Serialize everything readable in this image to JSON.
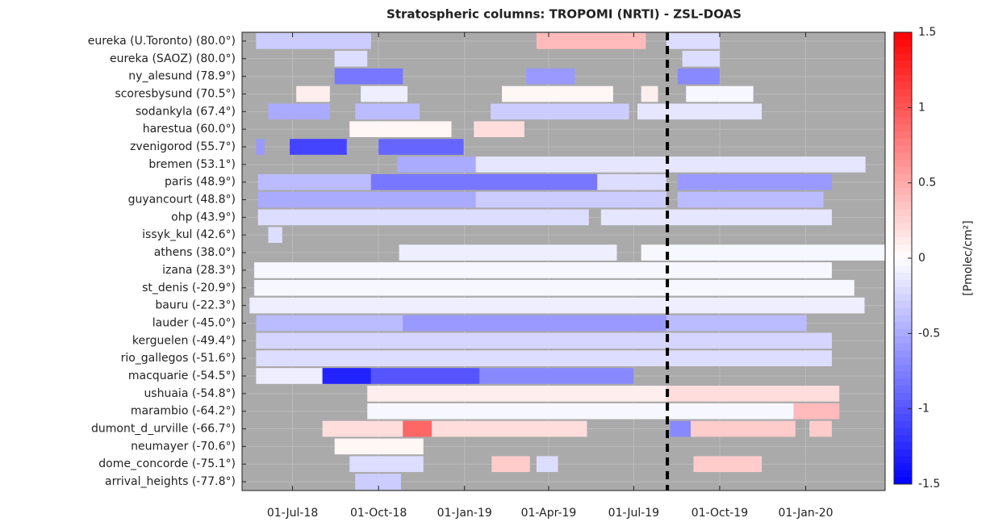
{
  "chart_data": {
    "type": "timeline-heatmap",
    "title": "Stratospheric columns: TROPOMI (NRTI) - ZSL-DOAS",
    "xlim": [
      "2018-05-08",
      "2020-03-26"
    ],
    "xticks": [
      {
        "value": "2018-07-01",
        "label": "01-Jul-18"
      },
      {
        "value": "2018-10-01",
        "label": "01-Oct-18"
      },
      {
        "value": "2019-01-01",
        "label": "01-Jan-19"
      },
      {
        "value": "2019-04-01",
        "label": "01-Apr-19"
      },
      {
        "value": "2019-07-01",
        "label": "01-Jul-19"
      },
      {
        "value": "2019-10-01",
        "label": "01-Oct-19"
      },
      {
        "value": "2020-01-01",
        "label": "01-Jan-20"
      }
    ],
    "vline": "2019-08-06",
    "grid": true,
    "background": "#aaaaaa",
    "colormap": [
      "#0000ff",
      "#ffffff",
      "#ff0000"
    ],
    "clim": [
      -1.5,
      1.5
    ],
    "cticks": [
      -1.5,
      -1,
      -0.5,
      0,
      0.5,
      1,
      1.5
    ],
    "colorbar_label": "[Pmolec/cm²]",
    "series": [
      {
        "name": "eureka (U.Toronto) (80.0°)",
        "start": [
          "2018-05-23",
          "2019-03-19",
          "2019-08-05"
        ],
        "end": [
          "2018-09-23",
          "2019-07-14",
          "2019-10-01"
        ],
        "values": [
          -0.3,
          0.4,
          -0.2
        ]
      },
      {
        "name": "eureka (SAOZ) (80.0°)",
        "start": [
          "2018-08-15",
          "2019-08-22"
        ],
        "end": [
          "2018-09-19",
          "2019-10-01"
        ],
        "values": [
          -0.2,
          -0.2
        ]
      },
      {
        "name": "ny_alesund (78.9°)",
        "start": [
          "2018-08-15",
          "2019-03-08",
          "2019-08-17"
        ],
        "end": [
          "2018-10-27",
          "2019-04-29",
          "2019-10-01"
        ],
        "values": [
          -0.8,
          -0.6,
          -0.7
        ]
      },
      {
        "name": "scoresbysund (70.5°)",
        "start": [
          "2018-07-05",
          "2018-09-12",
          "2019-02-10",
          "2019-07-09",
          "2019-08-26"
        ],
        "end": [
          "2018-08-10",
          "2018-11-01",
          "2019-06-09",
          "2019-07-27",
          "2019-11-06"
        ],
        "values": [
          0.1,
          -0.1,
          0.05,
          0.1,
          -0.05
        ]
      },
      {
        "name": "sodankyla (67.4°)",
        "start": [
          "2018-06-05",
          "2018-09-06",
          "2019-01-29",
          "2019-07-05"
        ],
        "end": [
          "2018-08-10",
          "2018-11-14",
          "2019-06-26",
          "2019-11-15"
        ],
        "values": [
          -0.5,
          -0.4,
          -0.3,
          -0.15
        ]
      },
      {
        "name": "harestua (60.0°)",
        "start": [
          "2018-08-31",
          "2019-01-11"
        ],
        "end": [
          "2018-12-18",
          "2019-03-06"
        ],
        "values": [
          0.05,
          0.2
        ]
      },
      {
        "name": "zvenigorod (55.7°)",
        "start": [
          "2018-05-23",
          "2018-06-28",
          "2018-10-01"
        ],
        "end": [
          "2018-06-01",
          "2018-08-28",
          "2018-12-31"
        ],
        "values": [
          -0.6,
          -1.1,
          -0.9
        ]
      },
      {
        "name": "bremen (53.1°)",
        "start": [
          "2018-10-21",
          "2019-01-13"
        ],
        "end": [
          "2019-01-13",
          "2020-03-05"
        ],
        "values": [
          -0.5,
          -0.15
        ]
      },
      {
        "name": "paris (48.9°)",
        "start": [
          "2018-05-25",
          "2018-09-23",
          "2019-05-23",
          "2019-08-17"
        ],
        "end": [
          "2018-09-23",
          "2019-05-23",
          "2019-08-05",
          "2020-01-29"
        ],
        "values": [
          -0.4,
          -0.8,
          -0.2,
          -0.6
        ]
      },
      {
        "name": "guyancourt (48.8°)",
        "start": [
          "2018-05-25",
          "2019-01-13",
          "2019-08-17"
        ],
        "end": [
          "2019-01-13",
          "2019-08-05",
          "2020-01-20"
        ],
        "values": [
          -0.5,
          -0.3,
          -0.4
        ]
      },
      {
        "name": "ohp (43.9°)",
        "start": [
          "2018-05-25",
          "2019-05-27"
        ],
        "end": [
          "2019-05-14",
          "2020-01-29"
        ],
        "values": [
          -0.2,
          -0.15
        ]
      },
      {
        "name": "issyk_kul (42.6°)",
        "start": [
          "2018-06-05"
        ],
        "end": [
          "2018-06-20"
        ],
        "values": [
          -0.2
        ]
      },
      {
        "name": "athens (38.0°)",
        "start": [
          "2018-10-23",
          "2019-07-09"
        ],
        "end": [
          "2019-06-13",
          "2020-03-26"
        ],
        "values": [
          -0.1,
          -0.05
        ]
      },
      {
        "name": "izana (28.3°)",
        "start": [
          "2018-05-21"
        ],
        "end": [
          "2020-01-29"
        ],
        "values": [
          -0.05
        ]
      },
      {
        "name": "st_denis (-20.9°)",
        "start": [
          "2018-05-21"
        ],
        "end": [
          "2020-02-22"
        ],
        "values": [
          -0.05
        ]
      },
      {
        "name": "bauru (-22.3°)",
        "start": [
          "2018-05-16"
        ],
        "end": [
          "2020-03-04"
        ],
        "values": [
          -0.1
        ]
      },
      {
        "name": "lauder (-45.0°)",
        "start": [
          "2018-05-23",
          "2018-10-27",
          "2019-08-05"
        ],
        "end": [
          "2018-10-27",
          "2019-08-05",
          "2020-01-02"
        ],
        "values": [
          -0.4,
          -0.6,
          -0.4
        ]
      },
      {
        "name": "kerguelen (-49.4°)",
        "start": [
          "2018-05-23"
        ],
        "end": [
          "2020-01-29"
        ],
        "values": [
          -0.25
        ]
      },
      {
        "name": "rio_gallegos (-51.6°)",
        "start": [
          "2018-05-23"
        ],
        "end": [
          "2020-01-29"
        ],
        "values": [
          -0.2
        ]
      },
      {
        "name": "macquarie (-54.5°)",
        "start": [
          "2018-05-23",
          "2018-08-02",
          "2018-09-23",
          "2019-01-17"
        ],
        "end": [
          "2018-08-02",
          "2018-09-23",
          "2019-01-17",
          "2019-07-01"
        ],
        "values": [
          -0.1,
          -1.3,
          -1.0,
          -0.7
        ]
      },
      {
        "name": "ushuaia (-54.8°)",
        "start": [
          "2018-09-19",
          "2019-08-05"
        ],
        "end": [
          "2019-08-05",
          "2020-02-06"
        ],
        "values": [
          0.1,
          0.2
        ]
      },
      {
        "name": "marambio (-64.2°)",
        "start": [
          "2018-09-19",
          "2019-12-19"
        ],
        "end": [
          "2019-12-19",
          "2020-02-06"
        ],
        "values": [
          -0.05,
          0.4
        ]
      },
      {
        "name": "dumont_d_urville (-66.7°)",
        "start": [
          "2018-08-02",
          "2018-10-27",
          "2018-11-27",
          "2019-08-09",
          "2019-08-31",
          "2020-01-05"
        ],
        "end": [
          "2018-10-27",
          "2018-11-27",
          "2019-05-12",
          "2019-08-31",
          "2019-12-21",
          "2020-01-29"
        ],
        "values": [
          0.2,
          0.9,
          0.2,
          -0.7,
          0.3,
          0.3
        ]
      },
      {
        "name": "neumayer (-70.6°)",
        "start": [
          "2018-08-15"
        ],
        "end": [
          "2018-11-18"
        ],
        "values": [
          0.05
        ]
      },
      {
        "name": "dome_concorde (-75.1°)",
        "start": [
          "2018-08-31",
          "2019-01-30",
          "2019-03-19",
          "2019-09-03"
        ],
        "end": [
          "2018-11-18",
          "2019-03-12",
          "2019-04-11",
          "2019-11-15"
        ],
        "values": [
          -0.2,
          0.3,
          -0.2,
          0.3
        ]
      },
      {
        "name": "arrival_heights (-77.8°)",
        "start": [
          "2018-09-06"
        ],
        "end": [
          "2018-10-25"
        ],
        "values": [
          -0.3
        ]
      }
    ]
  }
}
